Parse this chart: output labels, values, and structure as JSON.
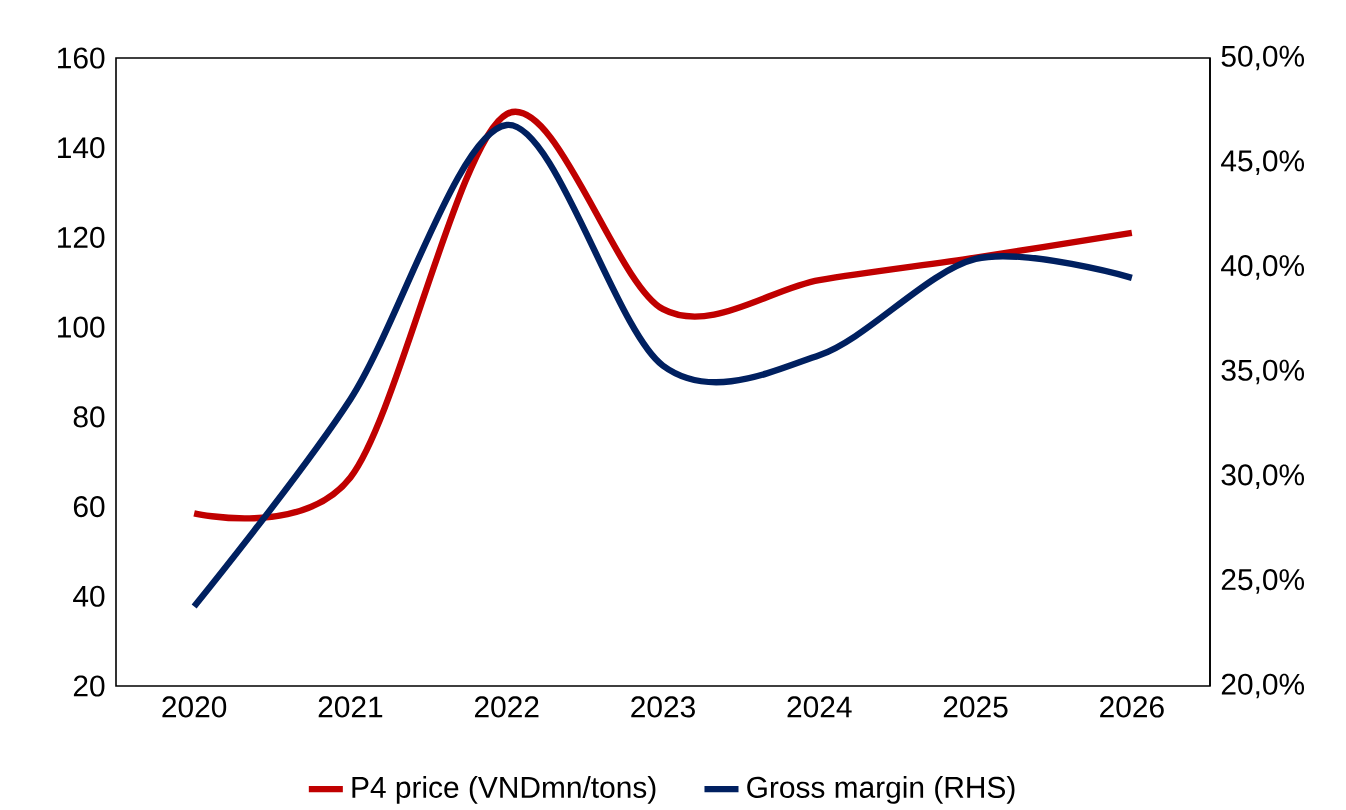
{
  "chart_data": {
    "type": "line",
    "categories": [
      "2020",
      "2021",
      "2022",
      "2023",
      "2024",
      "2025",
      "2026"
    ],
    "series": [
      {
        "name": "P4 price (VNDmn/tons)",
        "color": "#c00000",
        "values": [
          58.5,
          66.5,
          147.5,
          104,
          110.5,
          115.5,
          121
        ]
      },
      {
        "name": "Gross margin (RHS)",
        "color": "#002060",
        "axis": "y2",
        "values": [
          23.8,
          33.7,
          46.8,
          35.3,
          35.8,
          40.4,
          39.5
        ]
      }
    ],
    "ylim": [
      20,
      160
    ],
    "yticks": [
      20,
      40,
      60,
      80,
      100,
      120,
      140,
      160
    ],
    "y2lim": [
      20,
      50
    ],
    "y2ticks": [
      {
        "value": 20,
        "label": "20,0%"
      },
      {
        "value": 25,
        "label": "25,0%"
      },
      {
        "value": 30,
        "label": "30,0%"
      },
      {
        "value": 35,
        "label": "35,0%"
      },
      {
        "value": 40,
        "label": "40,0%"
      },
      {
        "value": 45,
        "label": "45,0%"
      },
      {
        "value": 50,
        "label": "50,0%"
      }
    ],
    "legend": "bottom"
  }
}
